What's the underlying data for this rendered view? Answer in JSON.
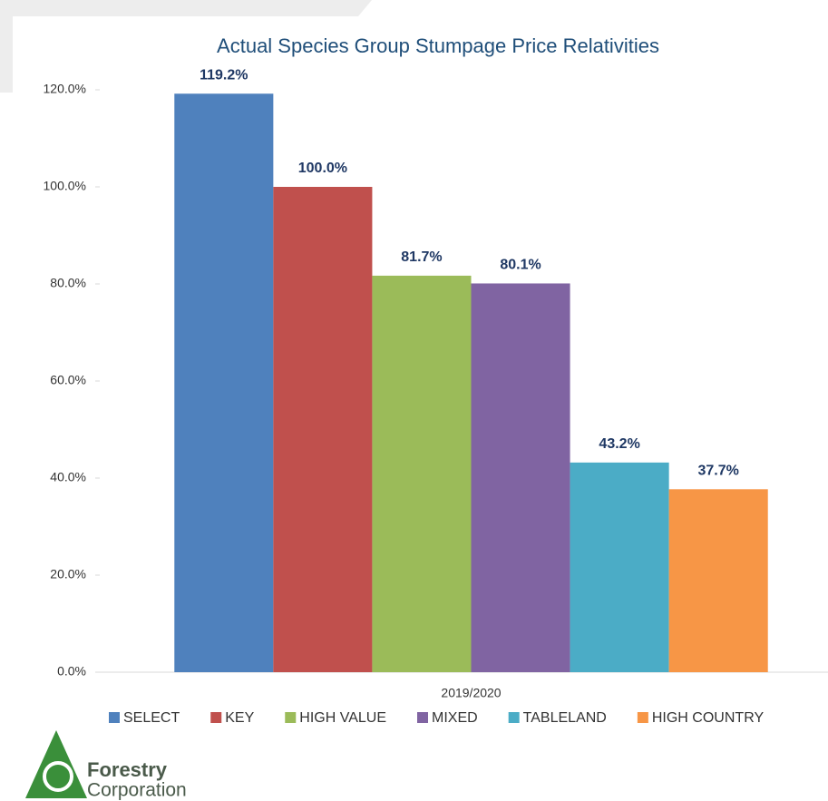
{
  "chart_data": {
    "type": "bar",
    "title": "Actual Species Group Stumpage Price Relativities",
    "categories": [
      "2019/2020"
    ],
    "series": [
      {
        "name": "SELECT",
        "color": "#4f81bd",
        "values": [
          119.2
        ],
        "value_labels": [
          "119.2%"
        ]
      },
      {
        "name": "KEY",
        "color": "#c0504d",
        "values": [
          100.0
        ],
        "value_labels": [
          "100.0%"
        ]
      },
      {
        "name": "HIGH VALUE",
        "color": "#9bbb59",
        "values": [
          81.7
        ],
        "value_labels": [
          "81.7%"
        ]
      },
      {
        "name": "MIXED",
        "color": "#8064a2",
        "values": [
          80.1
        ],
        "value_labels": [
          "80.1%"
        ]
      },
      {
        "name": "TABLELAND",
        "color": "#4bacc6",
        "values": [
          43.2
        ],
        "value_labels": [
          "43.2%"
        ]
      },
      {
        "name": "HIGH COUNTRY",
        "color": "#f79646",
        "values": [
          37.7
        ],
        "value_labels": [
          "37.7%"
        ]
      }
    ],
    "ylim": [
      0,
      120
    ],
    "yticks": [
      {
        "value": 0,
        "label": "0.0%"
      },
      {
        "value": 20,
        "label": "20.0%"
      },
      {
        "value": 40,
        "label": "40.0%"
      },
      {
        "value": 60,
        "label": "60.0%"
      },
      {
        "value": 80,
        "label": "80.0%"
      },
      {
        "value": 100,
        "label": "100.0%"
      },
      {
        "value": 120,
        "label": "120.0%"
      }
    ],
    "legend": "bottom"
  },
  "logo": {
    "line1": "Forestry",
    "line2": "Corporation"
  }
}
